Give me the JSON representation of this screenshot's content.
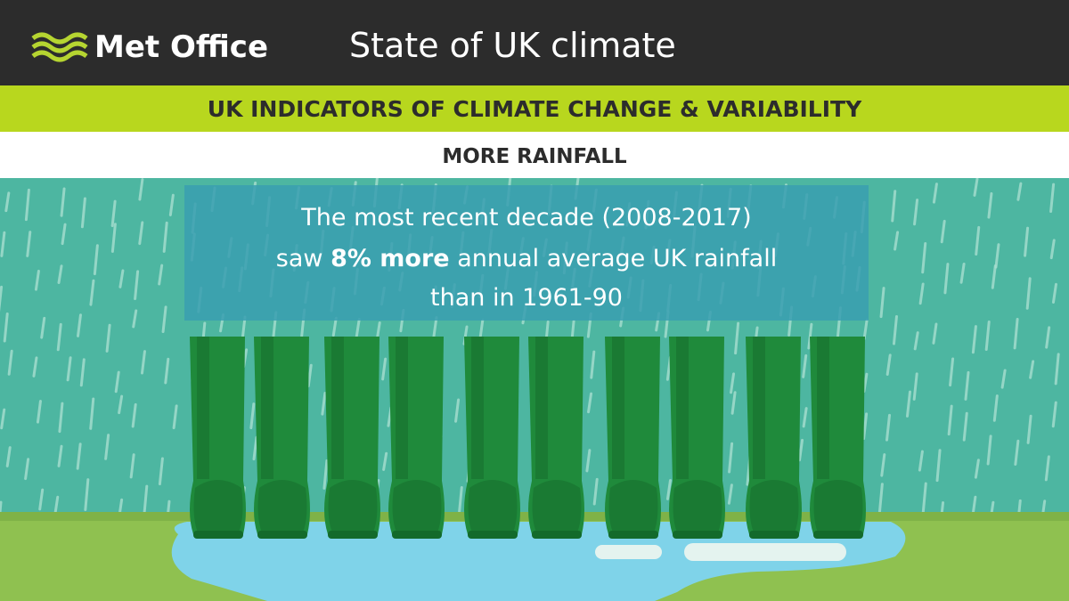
{
  "header": {
    "logo": "Met Office",
    "title": "State of UK climate"
  },
  "banner": "UK INDICATORS OF CLIMATE CHANGE & VARIABILITY",
  "subheading": "MORE RAINFALL",
  "message": {
    "line1": "The most recent decade (2008-2017)",
    "line2_start": "saw",
    "highlight": "8% more",
    "line2_end": "annual average UK rainfall",
    "line3": "than in 1961-90"
  }
}
